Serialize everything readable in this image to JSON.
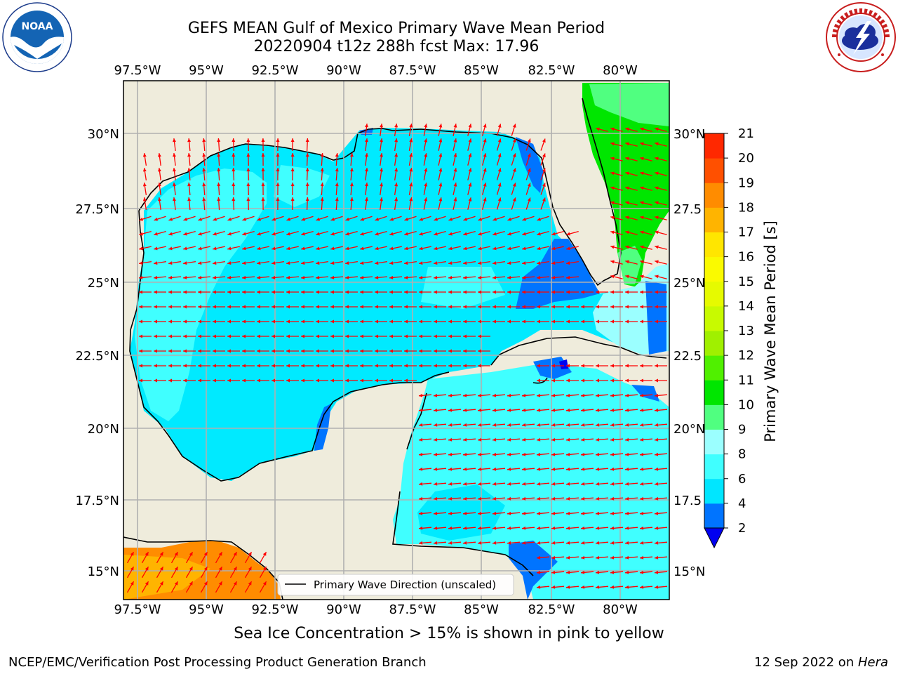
{
  "header": {
    "title_line1": "GEFS MEAN Gulf of Mexico Primary Wave Mean Period",
    "title_line2": "20220904 t12z 288h fcst   Max: 17.96"
  },
  "logos": {
    "left": {
      "name": "NOAA",
      "ring_text": "NATIONAL OCEANIC AND ATMOSPHERIC ADMINISTRATION · U.S. DEPARTMENT OF COMMERCE"
    },
    "right": {
      "name": "NATIONAL WEATHER SERVICE"
    }
  },
  "map": {
    "lon_labels": [
      "97.5°W",
      "95°W",
      "92.5°W",
      "90°W",
      "87.5°W",
      "85°W",
      "82.5°W",
      "80°W"
    ],
    "lat_labels_left": [
      "30°N",
      "27.5°N",
      "25°N",
      "22.5°N",
      "20°N",
      "17.5°N",
      "15°N"
    ],
    "lat_labels_right": [
      "30°N",
      "27.5",
      "25°N",
      "22.5",
      "20°N",
      "17.5",
      "15°N"
    ],
    "legend_text": "Primary Wave Direction (unscaled)",
    "colors": {
      "land": "#efecdc",
      "arrow": "#ff0000",
      "grid": "#b0b0b0"
    }
  },
  "colorbar": {
    "label": "Primary Wave Mean Period [s]",
    "ticks": [
      "2",
      "4",
      "6",
      "8",
      "9",
      "10",
      "11",
      "12",
      "13",
      "14",
      "15",
      "16",
      "17",
      "18",
      "19",
      "20",
      "21"
    ],
    "colors": [
      "#0074ff",
      "#00e6ff",
      "#40ffff",
      "#9bffff",
      "#50ff80",
      "#00e600",
      "#50f000",
      "#a0f000",
      "#c8fa00",
      "#e6fa00",
      "#fafa00",
      "#ffe600",
      "#ffb400",
      "#ff8c00",
      "#ff5000",
      "#ff2800",
      "#ff0000"
    ],
    "extend_color": "#0000f0"
  },
  "caption": "Sea Ice Concentration > 15% is shown in pink to yellow",
  "footer": {
    "left": "NCEP/EMC/Verification Post Processing Product Generation Branch",
    "right_date": "12 Sep 2022 on ",
    "right_host": "Hera"
  }
}
